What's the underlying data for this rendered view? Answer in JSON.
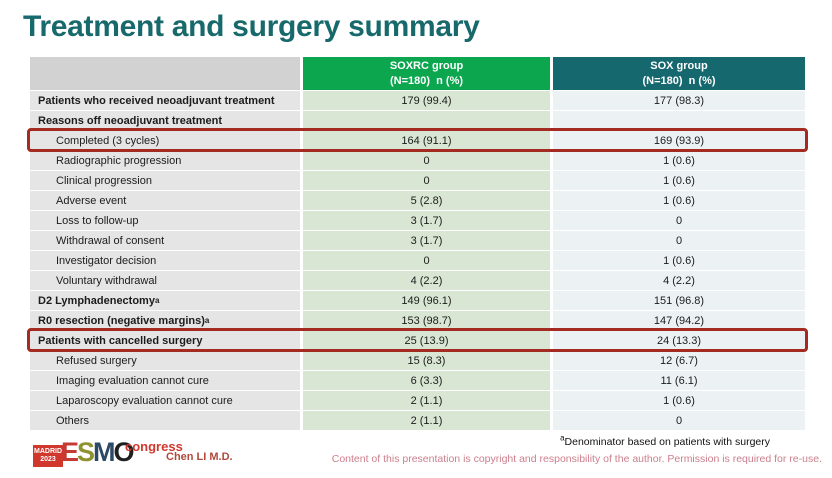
{
  "slide": {
    "title": "Treatment and surgery summary"
  },
  "colors": {
    "title": "#17696c",
    "label_header_bg": "#d2d2d2",
    "group1_header_bg": "#0ca64f",
    "group2_header_bg": "#15686e",
    "label_cell_bg": "#e5e5e5",
    "group1_cell_bg": "#d9e6d3",
    "group2_cell_bg": "#ecf2f3",
    "highlight_border": "#a32b22",
    "presenter": "#b04a3c",
    "copyright": "#cd7f8c",
    "logo_red": "#d0382e"
  },
  "table": {
    "header": {
      "group1_line1": "SOXRC group",
      "group1_line2": "(N=180)  n (%)",
      "group2_line1": "SOX group",
      "group2_line2": "(N=180)  n (%)"
    },
    "rows": [
      {
        "label": "Patients who received neoadjuvant treatment",
        "bold": true,
        "indent": false,
        "highlight": false,
        "sup": "",
        "soxrc": "179 (99.4)",
        "sox": "177 (98.3)"
      },
      {
        "label": "Reasons off neoadjuvant treatment",
        "bold": true,
        "indent": false,
        "highlight": false,
        "sup": "",
        "soxrc": "",
        "sox": ""
      },
      {
        "label": "Completed (3 cycles)",
        "bold": false,
        "indent": true,
        "highlight": true,
        "sup": "",
        "soxrc": "164 (91.1)",
        "sox": "169 (93.9)"
      },
      {
        "label": "Radiographic progression",
        "bold": false,
        "indent": true,
        "highlight": false,
        "sup": "",
        "soxrc": "0",
        "sox": "1 (0.6)"
      },
      {
        "label": "Clinical progression",
        "bold": false,
        "indent": true,
        "highlight": false,
        "sup": "",
        "soxrc": "0",
        "sox": "1 (0.6)"
      },
      {
        "label": "Adverse event",
        "bold": false,
        "indent": true,
        "highlight": false,
        "sup": "",
        "soxrc": "5 (2.8)",
        "sox": "1 (0.6)"
      },
      {
        "label": "Loss to follow-up",
        "bold": false,
        "indent": true,
        "highlight": false,
        "sup": "",
        "soxrc": "3 (1.7)",
        "sox": "0"
      },
      {
        "label": "Withdrawal of consent",
        "bold": false,
        "indent": true,
        "highlight": false,
        "sup": "",
        "soxrc": "3 (1.7)",
        "sox": "0"
      },
      {
        "label": "Investigator decision",
        "bold": false,
        "indent": true,
        "highlight": false,
        "sup": "",
        "soxrc": "0",
        "sox": "1 (0.6)"
      },
      {
        "label": "Voluntary withdrawal",
        "bold": false,
        "indent": true,
        "highlight": false,
        "sup": "",
        "soxrc": "4 (2.2)",
        "sox": "4 (2.2)"
      },
      {
        "label": "D2 Lymphadenectomy",
        "bold": true,
        "indent": false,
        "highlight": false,
        "sup": "a",
        "soxrc": "149 (96.1)",
        "sox": "151 (96.8)"
      },
      {
        "label": "R0 resection (negative margins)",
        "bold": true,
        "indent": false,
        "highlight": false,
        "sup": "a",
        "soxrc": "153 (98.7)",
        "sox": "147 (94.2)"
      },
      {
        "label": "Patients with cancelled surgery",
        "bold": true,
        "indent": false,
        "highlight": true,
        "sup": "",
        "soxrc": "25 (13.9)",
        "sox": "24 (13.3)"
      },
      {
        "label": "Refused surgery",
        "bold": false,
        "indent": true,
        "highlight": false,
        "sup": "",
        "soxrc": "15 (8.3)",
        "sox": "12 (6.7)"
      },
      {
        "label": "Imaging evaluation cannot cure",
        "bold": false,
        "indent": true,
        "highlight": false,
        "sup": "",
        "soxrc": "6 (3.3)",
        "sox": "11 (6.1)"
      },
      {
        "label": "Laparoscopy evaluation cannot cure",
        "bold": false,
        "indent": true,
        "highlight": false,
        "sup": "",
        "soxrc": "2 (1.1)",
        "sox": "1 (0.6)"
      },
      {
        "label": "Others",
        "bold": false,
        "indent": true,
        "highlight": false,
        "sup": "",
        "soxrc": "2 (1.1)",
        "sox": "0"
      }
    ]
  },
  "footer": {
    "logo": {
      "city": "MADRID",
      "year": "2023",
      "letters": [
        {
          "char": "E",
          "color": "#c63b31"
        },
        {
          "char": "S",
          "color": "#8f9230"
        },
        {
          "char": "M",
          "color": "#2c4a66"
        },
        {
          "char": "O",
          "color": "#1f1f1f"
        }
      ],
      "congress": "congress"
    },
    "presenter": "Chen LI M.D.",
    "footnote_sup": "a",
    "footnote": "Denominator based on patients with surgery",
    "copyright": "Content of this presentation is copyright and responsibility of the author. Permission is required for re-use."
  }
}
